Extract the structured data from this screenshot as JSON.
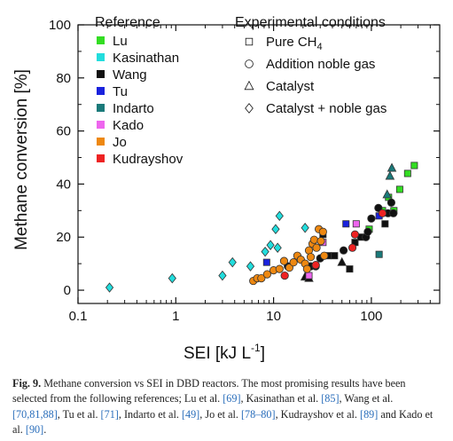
{
  "chart_data": {
    "type": "scatter",
    "x_scale": "log",
    "xlim": [
      0.1,
      500
    ],
    "ylim": [
      -5,
      100
    ],
    "x_ticks": [
      "0.1",
      "1",
      "10",
      "100"
    ],
    "y_ticks": [
      "0",
      "20",
      "40",
      "60",
      "80",
      "100"
    ],
    "xlabel": "SEI  [kJ L",
    "xlabel_sup": "-1",
    "xlabel_end": "]",
    "ylabel": "Methane conversion  [%]",
    "legend_reference_title": "Reference",
    "legend_conditions_title": "Experimental conditions",
    "conditions": [
      {
        "label": "Pure CH",
        "sub": "4",
        "marker": "square"
      },
      {
        "label": "Addition noble gas",
        "marker": "circle"
      },
      {
        "label": "Catalyst",
        "marker": "triangle"
      },
      {
        "label": "Catalyst + noble gas",
        "marker": "diamond"
      }
    ],
    "series": [
      {
        "name": "Lu",
        "color": "#33dd22",
        "points": [
          {
            "x": 95,
            "y": 23,
            "m": "square"
          },
          {
            "x": 130,
            "y": 30,
            "m": "square"
          },
          {
            "x": 150,
            "y": 35,
            "m": "square"
          },
          {
            "x": 170,
            "y": 30,
            "m": "square"
          },
          {
            "x": 195,
            "y": 38,
            "m": "square"
          },
          {
            "x": 235,
            "y": 44,
            "m": "square"
          },
          {
            "x": 275,
            "y": 47,
            "m": "square"
          }
        ]
      },
      {
        "name": "Kasinathan",
        "color": "#22dddd",
        "points": [
          {
            "x": 0.21,
            "y": 1,
            "m": "diamond"
          },
          {
            "x": 0.92,
            "y": 4.5,
            "m": "diamond"
          },
          {
            "x": 3.0,
            "y": 5.5,
            "m": "diamond"
          },
          {
            "x": 3.8,
            "y": 10.5,
            "m": "diamond"
          },
          {
            "x": 5.8,
            "y": 9,
            "m": "diamond"
          },
          {
            "x": 8.2,
            "y": 14.5,
            "m": "diamond"
          },
          {
            "x": 9.3,
            "y": 17,
            "m": "diamond"
          },
          {
            "x": 10.5,
            "y": 23,
            "m": "diamond"
          },
          {
            "x": 11.0,
            "y": 16,
            "m": "diamond"
          },
          {
            "x": 11.5,
            "y": 28,
            "m": "diamond"
          },
          {
            "x": 21,
            "y": 23.5,
            "m": "diamond"
          }
        ]
      },
      {
        "name": "Wang",
        "color": "#111111",
        "points": [
          {
            "x": 14,
            "y": 9,
            "m": "circle"
          },
          {
            "x": 24,
            "y": 9,
            "m": "circle"
          },
          {
            "x": 27,
            "y": 9,
            "m": "circle"
          },
          {
            "x": 30,
            "y": 12,
            "m": "circle"
          },
          {
            "x": 32,
            "y": 21,
            "m": "square"
          },
          {
            "x": 36,
            "y": 13,
            "m": "square"
          },
          {
            "x": 42,
            "y": 13,
            "m": "square"
          },
          {
            "x": 50,
            "y": 10.5,
            "m": "triangle"
          },
          {
            "x": 52,
            "y": 15,
            "m": "circle"
          },
          {
            "x": 60,
            "y": 8,
            "m": "square"
          },
          {
            "x": 68,
            "y": 18,
            "m": "square"
          },
          {
            "x": 78,
            "y": 20,
            "m": "square"
          },
          {
            "x": 88,
            "y": 20,
            "m": "circle"
          },
          {
            "x": 92,
            "y": 22,
            "m": "circle"
          },
          {
            "x": 100,
            "y": 27,
            "m": "circle"
          },
          {
            "x": 118,
            "y": 31,
            "m": "circle"
          },
          {
            "x": 138,
            "y": 25,
            "m": "square"
          },
          {
            "x": 148,
            "y": 29,
            "m": "circle"
          },
          {
            "x": 160,
            "y": 33,
            "m": "circle"
          },
          {
            "x": 168,
            "y": 29,
            "m": "circle"
          },
          {
            "x": 21,
            "y": 5,
            "m": "triangle"
          },
          {
            "x": 23,
            "y": 4.5,
            "m": "triangle"
          }
        ]
      },
      {
        "name": "Tu",
        "color": "#1a22dd",
        "points": [
          {
            "x": 8.5,
            "y": 10.5,
            "m": "square"
          },
          {
            "x": 55,
            "y": 25,
            "m": "square"
          },
          {
            "x": 120,
            "y": 28,
            "m": "square"
          }
        ]
      },
      {
        "name": "Indarto",
        "color": "#1a7a7a",
        "points": [
          {
            "x": 120,
            "y": 13.5,
            "m": "square"
          },
          {
            "x": 145,
            "y": 36,
            "m": "triangle"
          },
          {
            "x": 155,
            "y": 43,
            "m": "triangle"
          },
          {
            "x": 162,
            "y": 46,
            "m": "triangle"
          }
        ]
      },
      {
        "name": "Kado",
        "color": "#ee66ee",
        "points": [
          {
            "x": 23,
            "y": 5.5,
            "m": "square"
          },
          {
            "x": 32,
            "y": 18,
            "m": "square"
          },
          {
            "x": 70,
            "y": 25,
            "m": "square"
          }
        ]
      },
      {
        "name": "Jo",
        "color": "#ee8811",
        "points": [
          {
            "x": 6.2,
            "y": 3.5,
            "m": "circle"
          },
          {
            "x": 6.8,
            "y": 4.5,
            "m": "circle"
          },
          {
            "x": 7.5,
            "y": 4.5,
            "m": "circle"
          },
          {
            "x": 8.6,
            "y": 6,
            "m": "circle"
          },
          {
            "x": 10,
            "y": 7.5,
            "m": "circle"
          },
          {
            "x": 11.5,
            "y": 8,
            "m": "circle"
          },
          {
            "x": 12.8,
            "y": 11,
            "m": "circle"
          },
          {
            "x": 14.5,
            "y": 8.5,
            "m": "circle"
          },
          {
            "x": 16,
            "y": 10.5,
            "m": "circle"
          },
          {
            "x": 17.5,
            "y": 13,
            "m": "circle"
          },
          {
            "x": 19,
            "y": 11.5,
            "m": "circle"
          },
          {
            "x": 21,
            "y": 10,
            "m": "circle"
          },
          {
            "x": 23,
            "y": 15,
            "m": "circle"
          },
          {
            "x": 24,
            "y": 12.5,
            "m": "circle"
          },
          {
            "x": 25,
            "y": 17.5,
            "m": "circle"
          },
          {
            "x": 26,
            "y": 19,
            "m": "circle"
          },
          {
            "x": 27.5,
            "y": 16,
            "m": "circle"
          },
          {
            "x": 29,
            "y": 23,
            "m": "circle"
          },
          {
            "x": 30.5,
            "y": 18.5,
            "m": "circle"
          },
          {
            "x": 32,
            "y": 22,
            "m": "circle"
          },
          {
            "x": 33,
            "y": 13,
            "m": "circle"
          },
          {
            "x": 22,
            "y": 8,
            "m": "circle"
          }
        ]
      },
      {
        "name": "Kudrayshov",
        "color": "#ee2222",
        "points": [
          {
            "x": 13,
            "y": 5.5,
            "m": "circle"
          },
          {
            "x": 27,
            "y": 9.5,
            "m": "circle"
          },
          {
            "x": 64,
            "y": 16,
            "m": "circle"
          },
          {
            "x": 68,
            "y": 21,
            "m": "circle"
          },
          {
            "x": 130,
            "y": 29,
            "m": "circle"
          }
        ]
      }
    ]
  },
  "caption": {
    "fig": "Fig. 9.",
    "line1": " Methane conversion vs SEI in DBD reactors. The most promising results have been selected from the following references; Lu et al. ",
    "r1": "[69]",
    "t2": ", Kasinathan et al. ",
    "r2": "[85]",
    "t3": ", Wang et al. ",
    "r3": "[70,81,88]",
    "t4": ", Tu et al. ",
    "r4": "[71]",
    "t5": ", Indarto et al. ",
    "r5": "[49]",
    "t6": ", Jo et al. ",
    "r6": "[78–80]",
    "t7": ", Kudrayshov et al. ",
    "r7": "[89]",
    "t8": " and Kado et al. ",
    "r8": "[90]",
    "t9": "."
  }
}
